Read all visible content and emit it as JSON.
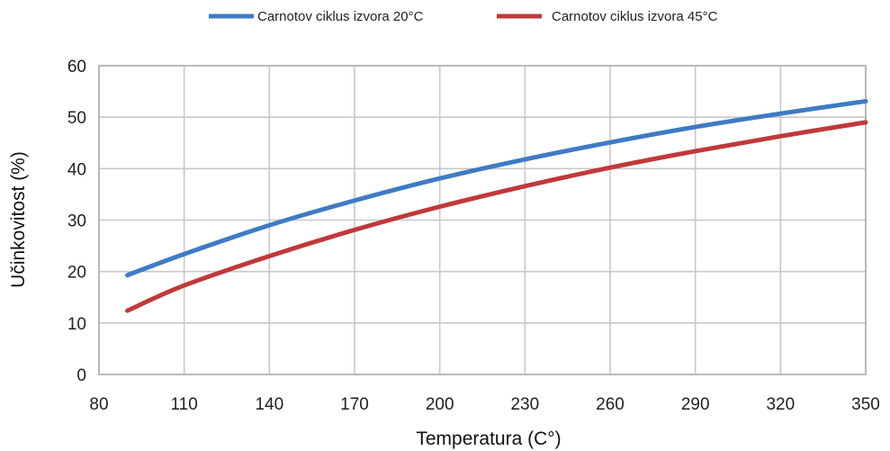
{
  "chart_data": {
    "type": "line",
    "title": "",
    "xlabel": "Temperatura (C°)",
    "ylabel": "Učinkovitost (%)",
    "xlim": [
      80,
      350
    ],
    "ylim": [
      0,
      60
    ],
    "xticks": [
      "80",
      "110",
      "140",
      "170",
      "200",
      "230",
      "260",
      "290",
      "320",
      "350"
    ],
    "yticks": [
      "0",
      "10",
      "20",
      "30",
      "40",
      "50",
      "60"
    ],
    "grid": true,
    "legend_position": "top",
    "x": [
      90,
      110,
      140,
      170,
      200,
      230,
      260,
      290,
      320,
      350
    ],
    "series": [
      {
        "name": "Carnotov ciklus izvora 20°C",
        "color": "#3f7bc4",
        "values": [
          19.3,
          23.4,
          29.0,
          33.8,
          38.1,
          41.8,
          45.1,
          48.1,
          50.7,
          53.1
        ]
      },
      {
        "name": "Carnotov ciklus izvora 45°C",
        "color": "#c0393b",
        "values": [
          12.4,
          17.3,
          23.0,
          28.1,
          32.6,
          36.6,
          40.2,
          43.4,
          46.3,
          49.0
        ]
      }
    ]
  },
  "colors": {
    "grid": "#c8c8c8",
    "axis": "#b0b0b0"
  }
}
